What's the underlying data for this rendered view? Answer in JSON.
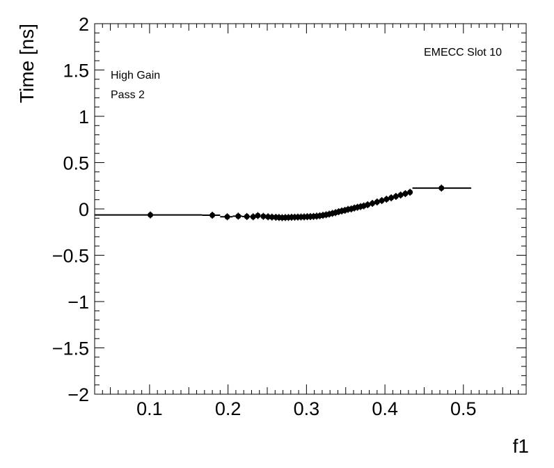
{
  "chart_data": {
    "type": "scatter",
    "xlabel": "f1",
    "ylabel": "Time [ns]",
    "xlim": [
      0.03,
      0.58
    ],
    "ylim": [
      -2,
      2
    ],
    "x_ticks": [
      0.1,
      0.2,
      0.3,
      0.4,
      0.5
    ],
    "x_tick_labels": [
      "0.1",
      "0.2",
      "0.3",
      "0.4",
      "0.5"
    ],
    "y_ticks": [
      -2,
      -1.5,
      -1,
      -0.5,
      0,
      0.5,
      1,
      1.5,
      2
    ],
    "y_tick_labels": [
      "−2",
      "−1.5",
      "−1",
      "−0.5",
      "0",
      "0.5",
      "1",
      "1.5",
      "2"
    ],
    "annotations": {
      "label_top_right": "EMECC Slot 10",
      "label_line1": "High Gain",
      "label_line2": "Pass 2"
    },
    "grid": false,
    "series": [
      {
        "points": [
          {
            "x": 0.101,
            "y": -0.065,
            "xlo": 0.03,
            "xhi": 0.167
          },
          {
            "x": 0.18,
            "y": -0.068,
            "xlo": 0.167,
            "xhi": 0.19
          },
          {
            "x": 0.199,
            "y": -0.085,
            "xlo": 0.19,
            "xhi": 0.206
          },
          {
            "x": 0.213,
            "y": -0.078,
            "xlo": 0.206,
            "xhi": 0.218
          },
          {
            "x": 0.224,
            "y": -0.082,
            "xlo": 0.218,
            "xhi": 0.228
          },
          {
            "x": 0.232,
            "y": -0.085,
            "xlo": 0.228,
            "xhi": 0.236
          },
          {
            "x": 0.238,
            "y": -0.072,
            "xlo": 0.235,
            "xhi": 0.241
          },
          {
            "x": 0.245,
            "y": -0.08,
            "xlo": 0.242,
            "xhi": 0.248
          },
          {
            "x": 0.251,
            "y": -0.085,
            "xlo": 0.248,
            "xhi": 0.254
          },
          {
            "x": 0.256,
            "y": -0.088,
            "xlo": 0.254,
            "xhi": 0.258
          },
          {
            "x": 0.261,
            "y": -0.09,
            "xlo": 0.259,
            "xhi": 0.263
          },
          {
            "x": 0.265,
            "y": -0.092,
            "xlo": 0.263,
            "xhi": 0.267
          },
          {
            "x": 0.269,
            "y": -0.094,
            "xlo": 0.267,
            "xhi": 0.271
          },
          {
            "x": 0.273,
            "y": -0.093,
            "xlo": 0.271,
            "xhi": 0.275
          },
          {
            "x": 0.277,
            "y": -0.092,
            "xlo": 0.275,
            "xhi": 0.279
          },
          {
            "x": 0.281,
            "y": -0.09,
            "xlo": 0.279,
            "xhi": 0.283
          },
          {
            "x": 0.285,
            "y": -0.089,
            "xlo": 0.283,
            "xhi": 0.287
          },
          {
            "x": 0.289,
            "y": -0.088,
            "xlo": 0.287,
            "xhi": 0.291
          },
          {
            "x": 0.293,
            "y": -0.087,
            "xlo": 0.291,
            "xhi": 0.295
          },
          {
            "x": 0.297,
            "y": -0.086,
            "xlo": 0.295,
            "xhi": 0.299
          },
          {
            "x": 0.301,
            "y": -0.084,
            "xlo": 0.299,
            "xhi": 0.303
          },
          {
            "x": 0.305,
            "y": -0.083,
            "xlo": 0.303,
            "xhi": 0.307
          },
          {
            "x": 0.309,
            "y": -0.081,
            "xlo": 0.307,
            "xhi": 0.311
          },
          {
            "x": 0.313,
            "y": -0.078,
            "xlo": 0.311,
            "xhi": 0.315
          },
          {
            "x": 0.317,
            "y": -0.074,
            "xlo": 0.315,
            "xhi": 0.319
          },
          {
            "x": 0.321,
            "y": -0.069,
            "xlo": 0.319,
            "xhi": 0.323
          },
          {
            "x": 0.325,
            "y": -0.063,
            "xlo": 0.323,
            "xhi": 0.327
          },
          {
            "x": 0.329,
            "y": -0.056,
            "xlo": 0.327,
            "xhi": 0.331
          },
          {
            "x": 0.333,
            "y": -0.048,
            "xlo": 0.331,
            "xhi": 0.335
          },
          {
            "x": 0.337,
            "y": -0.04,
            "xlo": 0.335,
            "xhi": 0.339
          },
          {
            "x": 0.341,
            "y": -0.03,
            "xlo": 0.339,
            "xhi": 0.343
          },
          {
            "x": 0.345,
            "y": -0.022,
            "xlo": 0.343,
            "xhi": 0.347
          },
          {
            "x": 0.349,
            "y": -0.015,
            "xlo": 0.347,
            "xhi": 0.351
          },
          {
            "x": 0.353,
            "y": -0.005,
            "xlo": 0.351,
            "xhi": 0.355
          },
          {
            "x": 0.357,
            "y": 0.0,
            "xlo": 0.355,
            "xhi": 0.359
          },
          {
            "x": 0.361,
            "y": 0.01,
            "xlo": 0.359,
            "xhi": 0.363
          },
          {
            "x": 0.365,
            "y": 0.018,
            "xlo": 0.363,
            "xhi": 0.367
          },
          {
            "x": 0.369,
            "y": 0.025,
            "xlo": 0.367,
            "xhi": 0.371
          },
          {
            "x": 0.373,
            "y": 0.033,
            "xlo": 0.371,
            "xhi": 0.375
          },
          {
            "x": 0.378,
            "y": 0.045,
            "xlo": 0.375,
            "xhi": 0.381
          },
          {
            "x": 0.384,
            "y": 0.06,
            "xlo": 0.381,
            "xhi": 0.387
          },
          {
            "x": 0.39,
            "y": 0.075,
            "xlo": 0.387,
            "xhi": 0.393
          },
          {
            "x": 0.396,
            "y": 0.09,
            "xlo": 0.393,
            "xhi": 0.399
          },
          {
            "x": 0.402,
            "y": 0.105,
            "xlo": 0.399,
            "xhi": 0.405
          },
          {
            "x": 0.408,
            "y": 0.12,
            "xlo": 0.405,
            "xhi": 0.411
          },
          {
            "x": 0.414,
            "y": 0.135,
            "xlo": 0.411,
            "xhi": 0.417
          },
          {
            "x": 0.42,
            "y": 0.15,
            "xlo": 0.417,
            "xhi": 0.423
          },
          {
            "x": 0.426,
            "y": 0.165,
            "xlo": 0.423,
            "xhi": 0.429
          },
          {
            "x": 0.432,
            "y": 0.18,
            "xlo": 0.429,
            "xhi": 0.435
          },
          {
            "x": 0.472,
            "y": 0.225,
            "xlo": 0.435,
            "xhi": 0.51
          }
        ]
      }
    ]
  }
}
